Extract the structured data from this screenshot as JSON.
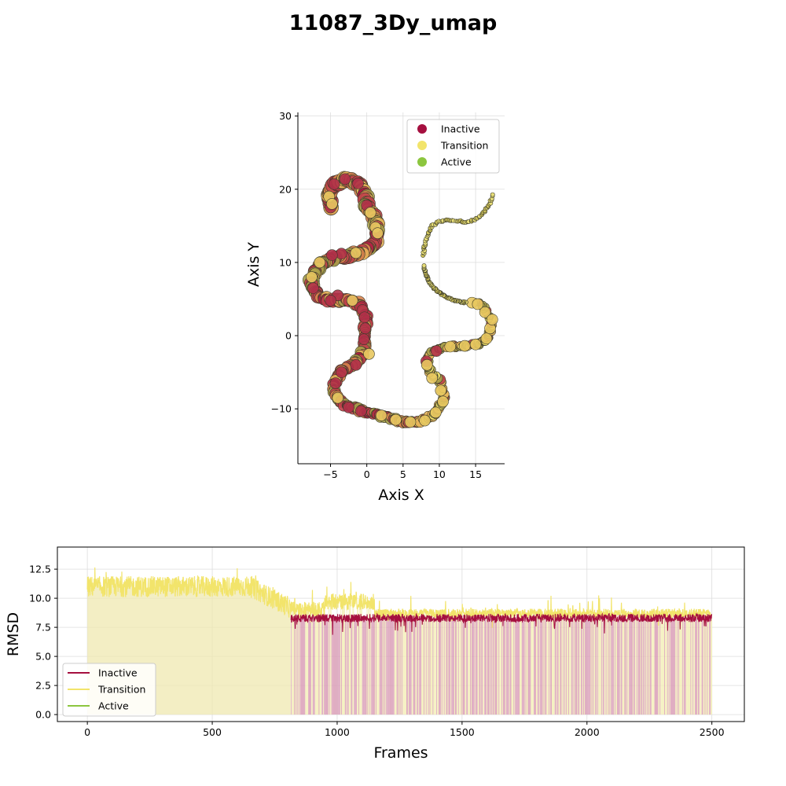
{
  "title": "11087_3Dy_umap",
  "colors": {
    "inactive": "#a50f3f",
    "transition": "#f2e46b",
    "active": "#8cc63f",
    "scatter_edge": "#3a3a2a",
    "grid": "#dddddd"
  },
  "chart_data": [
    {
      "type": "scatter",
      "xlabel": "Axis X",
      "ylabel": "Axis Y",
      "xlim": [
        -9.5,
        19
      ],
      "ylim": [
        -17.5,
        30.5
      ],
      "xticks": [
        -5,
        0,
        5,
        10,
        15
      ],
      "yticks": [
        -10,
        0,
        10,
        20,
        30
      ],
      "grid": true,
      "legend_position": "top-right",
      "legend": [
        "Inactive",
        "Transition",
        "Active"
      ],
      "path1": [
        [
          -5,
          17.5
        ],
        [
          -5.2,
          19.3
        ],
        [
          -4.5,
          20.7
        ],
        [
          -3,
          21.4
        ],
        [
          -1.2,
          20.8
        ],
        [
          -0.3,
          19.5
        ],
        [
          0,
          17.8
        ],
        [
          0.8,
          16.5
        ],
        [
          1.4,
          15.2
        ],
        [
          1.5,
          13.5
        ],
        [
          0.8,
          12.2
        ],
        [
          -0.5,
          11.5
        ],
        [
          -2.5,
          11
        ],
        [
          -4.5,
          10.6
        ],
        [
          -6,
          10
        ],
        [
          -7,
          9
        ],
        [
          -7.7,
          7.5
        ],
        [
          -7.4,
          6.2
        ],
        [
          -6.3,
          5.2
        ],
        [
          -4.5,
          4.8
        ],
        [
          -2.5,
          4.8
        ],
        [
          -1,
          4.3
        ],
        [
          -0.2,
          3
        ],
        [
          -0.1,
          1.5
        ],
        [
          -0.3,
          0
        ],
        [
          -0.3,
          -1.5
        ],
        [
          -0.8,
          -3
        ],
        [
          -2,
          -4
        ],
        [
          -3.5,
          -5
        ],
        [
          -4.5,
          -6.5
        ],
        [
          -4.5,
          -8
        ],
        [
          -3.2,
          -9.3
        ],
        [
          -1,
          -10.2
        ],
        [
          1,
          -10.7
        ],
        [
          3,
          -11.2
        ],
        [
          5,
          -11.8
        ],
        [
          7,
          -11.8
        ],
        [
          8.5,
          -11.2
        ],
        [
          9.8,
          -10.2
        ],
        [
          10.6,
          -8.8
        ],
        [
          10.5,
          -7
        ],
        [
          9.7,
          -5.8
        ],
        [
          8.7,
          -4.8
        ],
        [
          8.3,
          -3.7
        ],
        [
          8.9,
          -2.4
        ],
        [
          10.3,
          -1.6
        ],
        [
          12,
          -1.4
        ],
        [
          14,
          -1.4
        ],
        [
          15.5,
          -1.2
        ],
        [
          16.8,
          -0.2
        ],
        [
          17.2,
          1.5
        ],
        [
          16.8,
          3
        ],
        [
          16,
          4
        ],
        [
          15,
          4.6
        ]
      ],
      "path2": [
        [
          7.8,
          11
        ],
        [
          8,
          12.5
        ],
        [
          8.5,
          14
        ],
        [
          9,
          15
        ],
        [
          10,
          15.6
        ],
        [
          11,
          15.8
        ],
        [
          12.5,
          15.7
        ],
        [
          14,
          15.5
        ],
        [
          15.3,
          16
        ],
        [
          16.3,
          17
        ],
        [
          17,
          18.2
        ],
        [
          17.3,
          19.2
        ]
      ],
      "path3": [
        [
          13.7,
          4.5
        ],
        [
          12.5,
          4.7
        ],
        [
          11,
          5.2
        ],
        [
          9.8,
          6
        ],
        [
          8.8,
          7
        ],
        [
          8.2,
          8.2
        ],
        [
          7.8,
          9.5
        ]
      ],
      "series": [
        {
          "name": "Inactive",
          "x": [
            -5,
            -4.5,
            -3,
            -1.2,
            0,
            -3.5,
            -4,
            -5,
            -0.6,
            -0.3,
            -0.2,
            -0.4,
            -1.5,
            -3.5,
            -4.3,
            -2.5,
            -0.8,
            8.2,
            9.6,
            1.3,
            -7.4,
            -2,
            -4.8
          ],
          "y": [
            17.5,
            20.7,
            21.4,
            20.8,
            17.8,
            11.2,
            5.5,
            4.8,
            3.5,
            2.5,
            1,
            -0.5,
            -4,
            -5,
            -6.5,
            -9.8,
            -10.3,
            -3.5,
            -2.1,
            13.8,
            6.5,
            4.8,
            11
          ]
        },
        {
          "name": "Transition",
          "x": [
            -5.2,
            -4.8,
            0.5,
            1.2,
            -1.5,
            -6.5,
            -7.6,
            -2,
            0.3,
            2,
            4,
            6,
            8,
            9.5,
            10.5,
            10.2,
            9,
            8.3,
            11.5,
            13.5,
            15,
            16.5,
            17,
            16.3,
            14.5,
            -4,
            1.5,
            17.3,
            15.3
          ],
          "y": [
            19,
            18,
            16.8,
            14.8,
            11.3,
            10,
            8,
            4.8,
            -2.5,
            -10.9,
            -11.5,
            -11.8,
            -11.6,
            -10.5,
            -9,
            -7.5,
            -5.8,
            -4,
            -1.5,
            -1.4,
            -1.2,
            -0.4,
            1,
            3.2,
            4.5,
            -8.5,
            14,
            2.2,
            4.3
          ]
        },
        {
          "name": "Active",
          "x": [],
          "y": []
        }
      ]
    },
    {
      "type": "line",
      "xlabel": "Frames",
      "ylabel": "RMSD",
      "xlim": [
        -120,
        2630
      ],
      "ylim": [
        -0.6,
        14.4
      ],
      "xticks": [
        0,
        500,
        1000,
        1500,
        2000,
        2500
      ],
      "yticks": [
        0.0,
        2.5,
        5.0,
        7.5,
        10.0,
        12.5
      ],
      "ytick_labels": [
        "0.0",
        "2.5",
        "5.0",
        "7.5",
        "10.0",
        "12.5"
      ],
      "grid": true,
      "legend_position": "lower-left",
      "legend": [
        "Inactive",
        "Transition",
        "Active"
      ],
      "frames": 2500,
      "segments": [
        {
          "state": "Transition",
          "start": 0,
          "end": 810,
          "mean": 11.0,
          "spread": 0.9
        },
        {
          "state": "Transition",
          "start": 810,
          "end": 950,
          "mean": 9.0,
          "spread": 0.7
        },
        {
          "state": "Transition",
          "start": 950,
          "end": 1150,
          "mean": 9.7,
          "spread": 0.7
        },
        {
          "state": "Transition",
          "start": 1150,
          "end": 2500,
          "mean": 8.7,
          "spread": 0.4
        }
      ],
      "inactive_band": {
        "start": 815,
        "end": 2500,
        "mean": 8.3,
        "spread": 0.35
      }
    }
  ]
}
